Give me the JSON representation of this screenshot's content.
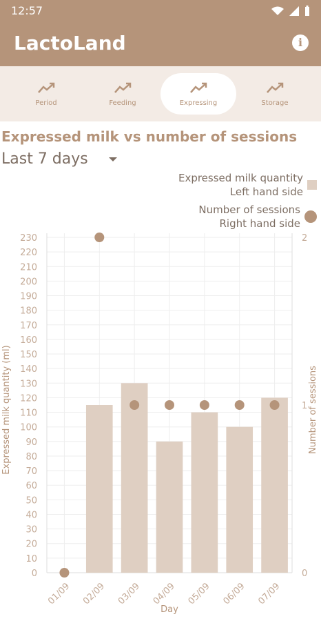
{
  "status": {
    "time": "12:57"
  },
  "app": {
    "title": "LactoLand"
  },
  "tabs": [
    {
      "label": "Period"
    },
    {
      "label": "Feeding"
    },
    {
      "label": "Expressing"
    },
    {
      "label": "Storage"
    }
  ],
  "active_tab": 2,
  "chart_header": {
    "title": "Expressed milk vs number of sessions",
    "range": "Last 7 days"
  },
  "legend": {
    "bars_line1": "Expressed milk quantity",
    "bars_line2": "Left hand side",
    "dots_line1": "Number of sessions",
    "dots_line2": "Right hand side"
  },
  "colors": {
    "brand": "#b5947a",
    "bar": "#dfcfc2",
    "tab_bg": "#f3ebe5",
    "text": "#7d6e63"
  },
  "chart_data": {
    "type": "bar",
    "categories": [
      "01/09",
      "02/09",
      "03/09",
      "04/09",
      "05/09",
      "06/09",
      "07/09"
    ],
    "series": [
      {
        "name": "Expressed milk quantity",
        "axis": "left",
        "values": [
          0,
          115,
          130,
          90,
          110,
          100,
          120
        ]
      },
      {
        "name": "Number of sessions",
        "axis": "right",
        "type": "scatter",
        "values": [
          0,
          2,
          1,
          1,
          1,
          1,
          1
        ]
      }
    ],
    "xlabel": "Day",
    "ylabel": "Expressed milk quantity (ml)",
    "y2label": "Number of sessions",
    "ylim": [
      0,
      230
    ],
    "yticks": [
      0,
      10,
      20,
      30,
      40,
      50,
      60,
      70,
      80,
      90,
      100,
      110,
      120,
      130,
      140,
      150,
      160,
      170,
      180,
      190,
      200,
      210,
      220,
      230
    ],
    "y2lim": [
      0,
      2
    ],
    "y2ticks": [
      0,
      1,
      2
    ],
    "grid": true,
    "legend_position": "top-right"
  }
}
